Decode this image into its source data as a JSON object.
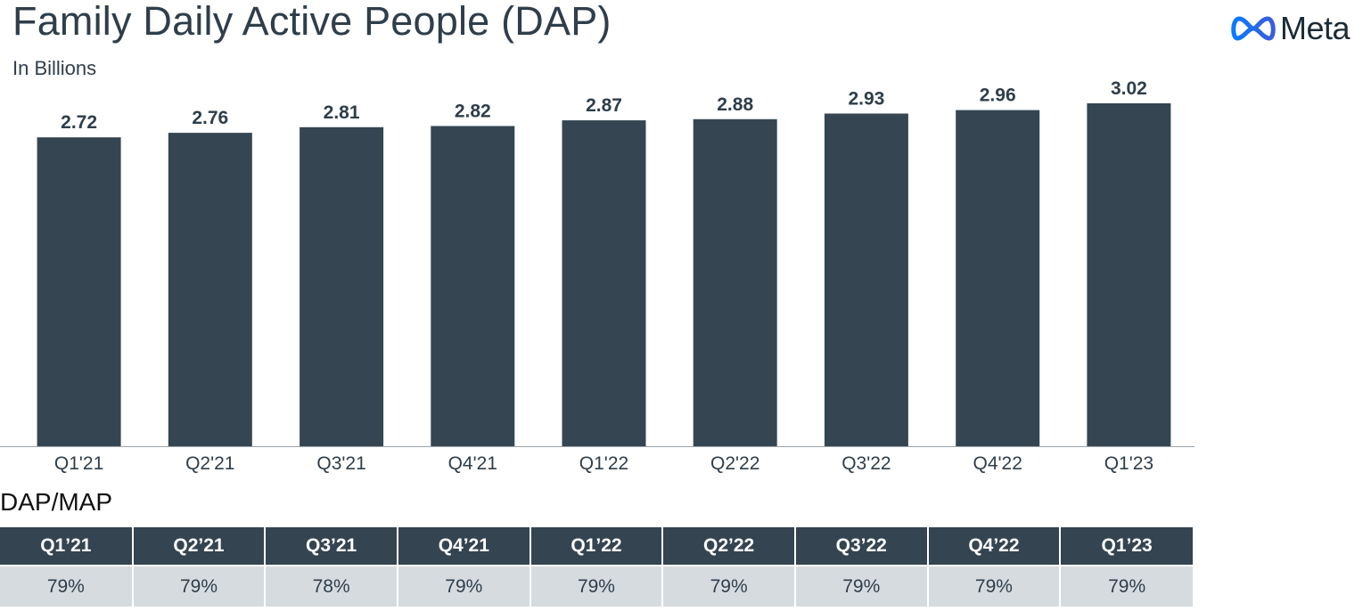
{
  "header": {
    "title": "Family Daily Active People (DAP)",
    "subtitle": "In Billions",
    "logo_text": "Meta"
  },
  "colors": {
    "bar": "#354652",
    "text": "#2f3e4a",
    "table_header": "#344451",
    "table_row": "#d6dbe0",
    "logo_gradient_start": "#0a7cff",
    "logo_gradient_end": "#3b5bdb"
  },
  "chart_data": {
    "type": "bar",
    "title": "Family Daily Active People (DAP)",
    "subtitle": "In Billions",
    "xlabel": "",
    "ylabel": "",
    "categories": [
      "Q1'21",
      "Q2'21",
      "Q3'21",
      "Q4'21",
      "Q1'22",
      "Q2'22",
      "Q3'22",
      "Q4'22",
      "Q1'23"
    ],
    "values": [
      2.72,
      2.76,
      2.81,
      2.82,
      2.87,
      2.88,
      2.93,
      2.96,
      3.02
    ],
    "value_labels": [
      "2.72",
      "2.76",
      "2.81",
      "2.82",
      "2.87",
      "2.88",
      "2.93",
      "2.96",
      "3.02"
    ],
    "ylim": [
      0,
      3.02
    ],
    "grid": false,
    "legend": "none"
  },
  "dap_map": {
    "label": "DAP/MAP",
    "headers": [
      "Q1’21",
      "Q2’21",
      "Q3’21",
      "Q4’21",
      "Q1’22",
      "Q2’22",
      "Q3’22",
      "Q4’22",
      "Q1’23"
    ],
    "values": [
      "79%",
      "79%",
      "78%",
      "79%",
      "79%",
      "79%",
      "79%",
      "79%",
      "79%"
    ]
  }
}
